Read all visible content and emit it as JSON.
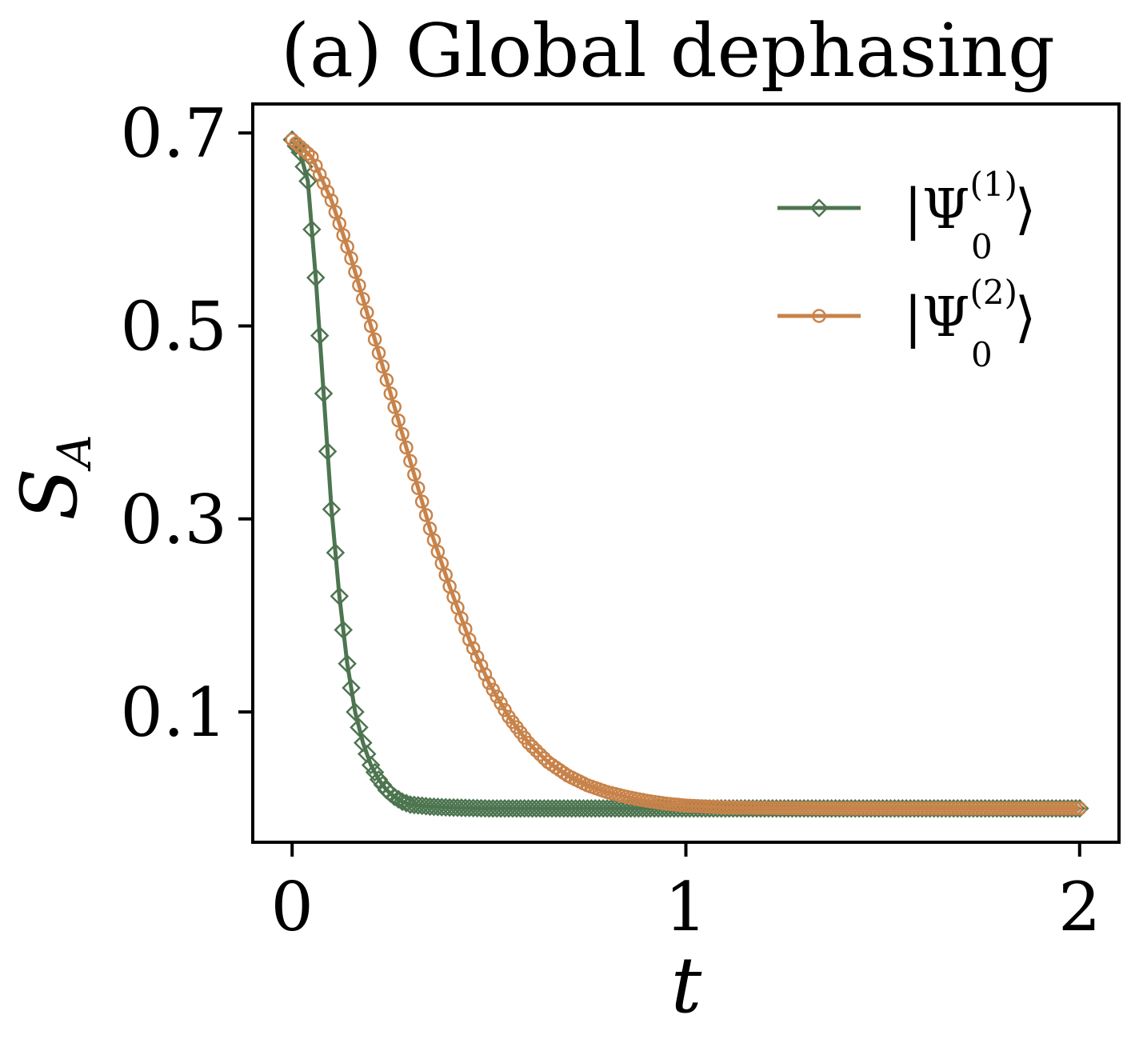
{
  "chart_data": {
    "type": "line",
    "title": "(a) Global dephasing",
    "xlabel": "t",
    "ylabel": {
      "symbol": "S",
      "subscript": "A"
    },
    "xlim": [
      -0.1,
      2.1
    ],
    "ylim": [
      -0.035,
      0.73
    ],
    "xticks": [
      0,
      1,
      2
    ],
    "xtick_labels": [
      "0",
      "1",
      "2"
    ],
    "yticks": [
      0.1,
      0.3,
      0.5,
      0.7
    ],
    "ytick_labels": [
      "0.1",
      "0.3",
      "0.5",
      "0.7"
    ],
    "grid": false,
    "legend_position": "top-right",
    "series": [
      {
        "name": {
          "ket_open": "|Ψ",
          "sub": "0",
          "sup": "(1)",
          "ket_close": "⟩"
        },
        "color": "#4d7550",
        "marker": "diamond",
        "x": [
          0.0,
          0.02,
          0.04,
          0.06,
          0.08,
          0.1,
          0.12,
          0.14,
          0.16,
          0.18,
          0.2,
          0.22,
          0.24,
          0.26,
          0.28,
          0.3,
          0.35,
          0.4,
          0.5,
          0.6,
          0.8,
          1.0,
          1.2,
          1.4,
          1.6,
          1.8,
          2.0
        ],
        "y": [
          0.693,
          0.68,
          0.65,
          0.55,
          0.43,
          0.31,
          0.22,
          0.15,
          0.1,
          0.068,
          0.045,
          0.03,
          0.019,
          0.012,
          0.007,
          0.004,
          0.002,
          0.001,
          0.0,
          0.0,
          0.0,
          0.0,
          0.0,
          0.0,
          0.0,
          0.0,
          0.0
        ]
      },
      {
        "name": {
          "ket_open": "|Ψ",
          "sub": "0",
          "sup": "(2)",
          "ket_close": "⟩"
        },
        "color": "#c8834a",
        "marker": "circle",
        "x": [
          0.0,
          0.05,
          0.1,
          0.15,
          0.2,
          0.25,
          0.3,
          0.35,
          0.4,
          0.45,
          0.5,
          0.55,
          0.6,
          0.65,
          0.7,
          0.75,
          0.8,
          0.85,
          0.9,
          0.95,
          1.0,
          1.1,
          1.2,
          1.4,
          1.6,
          1.8,
          2.0
        ],
        "y": [
          0.693,
          0.675,
          0.63,
          0.57,
          0.5,
          0.43,
          0.36,
          0.29,
          0.23,
          0.175,
          0.13,
          0.095,
          0.068,
          0.048,
          0.034,
          0.024,
          0.017,
          0.012,
          0.008,
          0.005,
          0.003,
          0.001,
          0.0005,
          0.0,
          0.0,
          0.0,
          0.0
        ]
      }
    ]
  }
}
